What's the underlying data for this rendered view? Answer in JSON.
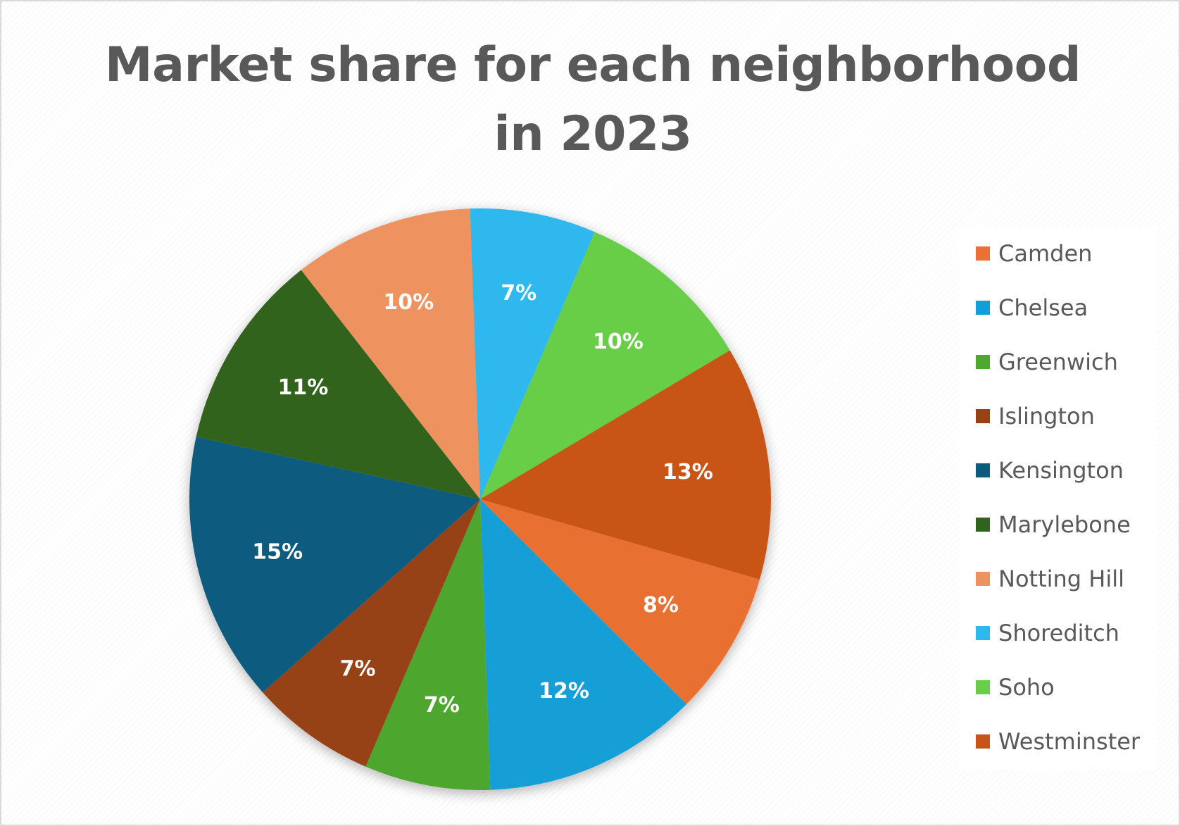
{
  "chart_data": {
    "type": "pie",
    "title": "Market share for each neighborhood in 2023",
    "start_angle_deg": 92,
    "direction": "clockwise",
    "legend_position": "right",
    "slices": [
      {
        "name": "Shoreditch",
        "value": 7,
        "label": "7%",
        "color": "#2db8ee"
      },
      {
        "name": "Soho",
        "value": 10,
        "label": "10%",
        "color": "#68cd47"
      },
      {
        "name": "Westminster",
        "value": 13,
        "label": "13%",
        "color": "#c85518"
      },
      {
        "name": "Camden",
        "value": 8,
        "label": "8%",
        "color": "#e87133"
      },
      {
        "name": "Chelsea",
        "value": 12,
        "label": "12%",
        "color": "#129fd7"
      },
      {
        "name": "Greenwich",
        "value": 7,
        "label": "7%",
        "color": "#4ea72e"
      },
      {
        "name": "Islington",
        "value": 7,
        "label": "7%",
        "color": "#974213"
      },
      {
        "name": "Kensington",
        "value": 15,
        "label": "15%",
        "color": "#0a5b7f"
      },
      {
        "name": "Marylebone",
        "value": 11,
        "label": "11%",
        "color": "#30631d"
      },
      {
        "name": "Notting Hill",
        "value": 10,
        "label": "10%",
        "color": "#ee925f"
      }
    ],
    "legend": [
      {
        "label": "Camden",
        "color": "#e87133"
      },
      {
        "label": "Chelsea",
        "color": "#129fd7"
      },
      {
        "label": "Greenwich",
        "color": "#4ea72e"
      },
      {
        "label": "Islington",
        "color": "#974213"
      },
      {
        "label": "Kensington",
        "color": "#0a5b7f"
      },
      {
        "label": "Marylebone",
        "color": "#30631d"
      },
      {
        "label": "Notting Hill",
        "color": "#ee925f"
      },
      {
        "label": "Shoreditch",
        "color": "#2db8ee"
      },
      {
        "label": "Soho",
        "color": "#68cd47"
      },
      {
        "label": "Westminster",
        "color": "#c85518"
      }
    ]
  }
}
